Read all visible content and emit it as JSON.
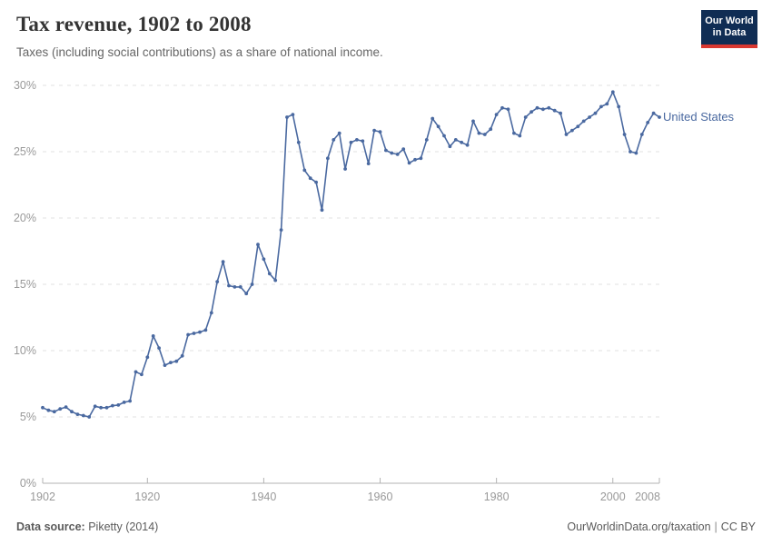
{
  "header": {
    "title": "Tax revenue, 1902 to 2008",
    "subtitle": "Taxes (including social contributions) as a share of national income."
  },
  "logo": {
    "line1": "Our World",
    "line2": "in Data",
    "bg_color": "#102d54",
    "accent_color": "#d93831"
  },
  "legend": {
    "series_label": "United States"
  },
  "footer": {
    "source_label": "Data source:",
    "source_value": "Piketty (2014)",
    "url": "OurWorldinData.org/taxation",
    "separator": "|",
    "license": "CC BY"
  },
  "chart_data": {
    "type": "line",
    "title": "Tax revenue, 1902 to 2008",
    "xlabel": "",
    "ylabel": "",
    "xlim": [
      1902,
      2008
    ],
    "ylim": [
      0,
      30
    ],
    "grid": "horizontal-dashed",
    "legend_position": "right-of-line-end",
    "grid_color": "#e0e0e0",
    "axis_color": "#b3b3b3",
    "tick_label_color": "#999999",
    "x_ticks": {
      "values": [
        1902,
        1920,
        1940,
        1960,
        1980,
        2000,
        2008
      ],
      "labels": [
        "1902",
        "1920",
        "1940",
        "1960",
        "1980",
        "2000",
        "2008"
      ]
    },
    "y_ticks": {
      "values": [
        0,
        5,
        10,
        15,
        20,
        25,
        30
      ],
      "labels": [
        "0%",
        "5%",
        "10%",
        "15%",
        "20%",
        "25%",
        "30%"
      ]
    },
    "series": [
      {
        "name": "United States",
        "color": "#4a69a0",
        "x": [
          1902,
          1903,
          1904,
          1905,
          1906,
          1907,
          1908,
          1909,
          1910,
          1911,
          1912,
          1913,
          1914,
          1915,
          1916,
          1917,
          1918,
          1919,
          1920,
          1921,
          1922,
          1923,
          1924,
          1925,
          1926,
          1927,
          1928,
          1929,
          1930,
          1931,
          1932,
          1933,
          1934,
          1935,
          1936,
          1937,
          1938,
          1939,
          1940,
          1941,
          1942,
          1943,
          1944,
          1945,
          1946,
          1947,
          1948,
          1949,
          1950,
          1951,
          1952,
          1953,
          1954,
          1955,
          1956,
          1957,
          1958,
          1959,
          1960,
          1961,
          1962,
          1963,
          1964,
          1965,
          1966,
          1967,
          1968,
          1969,
          1970,
          1971,
          1972,
          1973,
          1974,
          1975,
          1976,
          1977,
          1978,
          1979,
          1980,
          1981,
          1982,
          1983,
          1984,
          1985,
          1986,
          1987,
          1988,
          1989,
          1990,
          1991,
          1992,
          1993,
          1994,
          1995,
          1996,
          1997,
          1998,
          1999,
          2000,
          2001,
          2002,
          2003,
          2004,
          2005,
          2006,
          2007,
          2008
        ],
        "values": [
          5.7,
          5.5,
          5.4,
          5.6,
          5.75,
          5.4,
          5.2,
          5.1,
          5.0,
          5.8,
          5.7,
          5.7,
          5.85,
          5.9,
          6.1,
          6.2,
          8.4,
          8.2,
          9.5,
          11.1,
          10.2,
          8.9,
          9.1,
          9.2,
          9.6,
          11.2,
          11.3,
          11.4,
          11.55,
          12.85,
          15.2,
          16.7,
          14.9,
          14.8,
          14.8,
          14.3,
          15.0,
          18.0,
          16.9,
          15.8,
          15.3,
          19.1,
          27.6,
          27.8,
          25.7,
          23.6,
          23.0,
          22.7,
          20.6,
          24.5,
          25.9,
          26.4,
          23.7,
          25.7,
          25.9,
          25.8,
          24.1,
          26.6,
          26.5,
          25.1,
          24.9,
          24.8,
          25.2,
          24.15,
          24.4,
          24.5,
          25.9,
          27.5,
          26.9,
          26.2,
          25.4,
          25.9,
          25.7,
          25.5,
          27.3,
          26.4,
          26.3,
          26.7,
          27.8,
          28.3,
          28.2,
          26.4,
          26.2,
          27.6,
          28.0,
          28.3,
          28.2,
          28.3,
          28.1,
          27.9,
          26.3,
          26.6,
          26.9,
          27.3,
          27.6,
          27.9,
          28.4,
          28.6,
          29.5,
          28.4,
          26.3,
          25.0,
          24.9,
          26.3,
          27.2,
          27.9,
          27.6
        ]
      }
    ]
  }
}
